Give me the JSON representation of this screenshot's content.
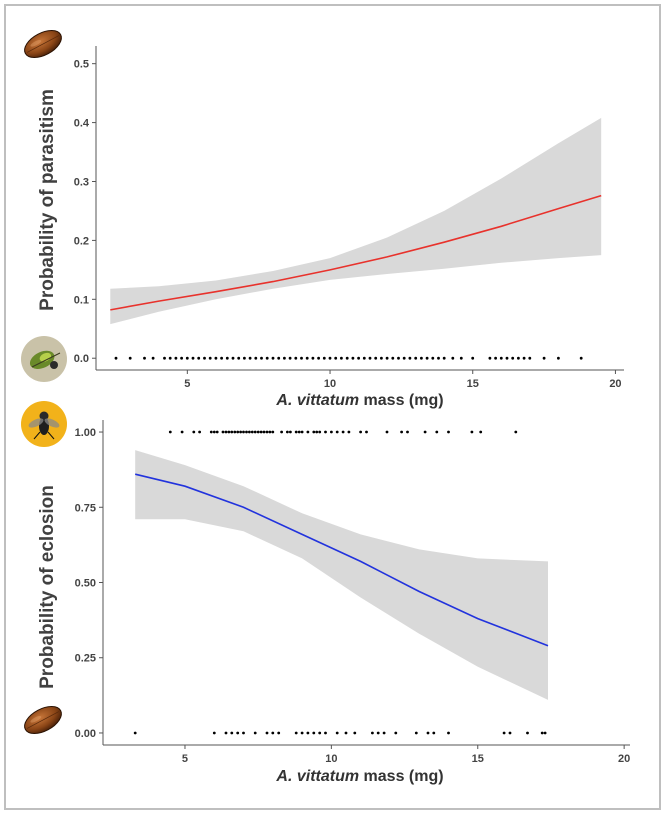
{
  "chart_data": [
    {
      "type": "line",
      "ylabel": "Probability of parasitism",
      "xlabel_italic": "A. vittatum",
      "xlabel_rest": " mass (mg)",
      "xlim": [
        1.8,
        20.3
      ],
      "ylim": [
        -0.02,
        0.53
      ],
      "xticks": [
        5,
        10,
        15,
        20
      ],
      "yticks": [
        0.0,
        0.1,
        0.2,
        0.3,
        0.4,
        0.5
      ],
      "ytick_labels": [
        "0.0",
        "0.1",
        "0.2",
        "0.3",
        "0.4",
        "0.5"
      ],
      "line_color": "#e8322c",
      "band_color": "#d9d9d9",
      "series": [
        {
          "x": [
            2.3,
            4,
            6,
            8,
            10,
            12,
            14,
            16,
            18,
            19.5
          ],
          "y": [
            0.082,
            0.097,
            0.113,
            0.13,
            0.15,
            0.172,
            0.197,
            0.224,
            0.254,
            0.276
          ],
          "lower": [
            0.058,
            0.079,
            0.1,
            0.118,
            0.133,
            0.143,
            0.152,
            0.162,
            0.17,
            0.175
          ],
          "upper": [
            0.118,
            0.122,
            0.132,
            0.148,
            0.17,
            0.205,
            0.25,
            0.305,
            0.365,
            0.408
          ]
        }
      ],
      "points_y": 0.0,
      "points_x": [
        2.5,
        3.0,
        3.5,
        3.8,
        4.2,
        4.4,
        4.6,
        4.8,
        5.0,
        5.2,
        5.4,
        5.6,
        5.8,
        6.0,
        6.2,
        6.4,
        6.6,
        6.8,
        7.0,
        7.2,
        7.4,
        7.6,
        7.8,
        8.0,
        8.2,
        8.4,
        8.6,
        8.8,
        9.0,
        9.2,
        9.4,
        9.6,
        9.8,
        10.0,
        10.2,
        10.4,
        10.6,
        10.8,
        11.0,
        11.2,
        11.4,
        11.6,
        11.8,
        12.0,
        12.2,
        12.4,
        12.6,
        12.8,
        13.0,
        13.2,
        13.4,
        13.6,
        13.8,
        14.0,
        14.3,
        14.6,
        15.0,
        15.6,
        15.8,
        16.0,
        16.2,
        16.4,
        16.6,
        16.8,
        17.0,
        17.5,
        18.0,
        18.8
      ],
      "icons": [
        "beetle-icon",
        "parasitized-beetle-icon"
      ]
    },
    {
      "type": "line",
      "ylabel": "Probability of eclosion",
      "xlabel_italic": "A. vittatum",
      "xlabel_rest": " mass (mg)",
      "xlim": [
        2.2,
        20.2
      ],
      "ylim": [
        -0.04,
        1.04
      ],
      "xticks": [
        5,
        10,
        15,
        20
      ],
      "yticks": [
        0.0,
        0.25,
        0.5,
        0.75,
        1.0
      ],
      "ytick_labels": [
        "0.00",
        "0.25",
        "0.50",
        "0.75",
        "1.00"
      ],
      "line_color": "#2233dd",
      "band_color": "#d9d9d9",
      "series": [
        {
          "x": [
            3.3,
            5,
            7,
            9,
            11,
            13,
            15,
            17.4
          ],
          "y": [
            0.86,
            0.82,
            0.75,
            0.66,
            0.57,
            0.47,
            0.38,
            0.29
          ],
          "lower": [
            0.71,
            0.71,
            0.67,
            0.58,
            0.45,
            0.33,
            0.22,
            0.11
          ],
          "upper": [
            0.94,
            0.89,
            0.82,
            0.73,
            0.66,
            0.61,
            0.58,
            0.57
          ]
        }
      ],
      "points_top_y": 1.0,
      "points_top_x": [
        4.5,
        4.9,
        5.3,
        5.5,
        5.9,
        6.0,
        6.1,
        6.3,
        6.4,
        6.5,
        6.6,
        6.7,
        6.8,
        6.9,
        7.0,
        7.1,
        7.2,
        7.3,
        7.4,
        7.5,
        7.6,
        7.7,
        7.8,
        7.9,
        8.0,
        8.3,
        8.5,
        8.6,
        8.8,
        8.9,
        9.0,
        9.2,
        9.4,
        9.5,
        9.6,
        9.8,
        10.0,
        10.2,
        10.4,
        10.6,
        11.0,
        11.2,
        11.9,
        12.4,
        12.6,
        13.2,
        13.6,
        14.0,
        14.8,
        15.1,
        16.3
      ],
      "points_bottom_y": 0.0,
      "points_bottom_x": [
        3.3,
        6.0,
        6.4,
        6.6,
        6.8,
        7.0,
        7.4,
        7.8,
        8.0,
        8.2,
        8.8,
        9.0,
        9.2,
        9.4,
        9.6,
        9.8,
        10.2,
        10.5,
        10.8,
        11.4,
        11.6,
        11.8,
        12.2,
        12.9,
        13.3,
        13.5,
        14.0,
        15.9,
        16.1,
        16.7,
        17.2,
        17.3
      ],
      "icons": [
        "parasitoid-fly-icon",
        "beetle-icon"
      ]
    }
  ]
}
